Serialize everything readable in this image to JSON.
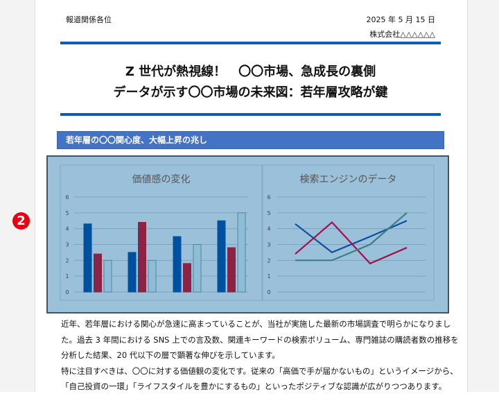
{
  "badge": "2",
  "header": {
    "recipient": "報道関係各位",
    "date": "2025 年 5 月 15 日",
    "company": "株式会社△△△△△△"
  },
  "title": {
    "line1": "Z 世代が熱視線！　〇〇市場、急成長の裏側",
    "line2": "データが示す〇〇市場の未来図：若年層攻略が鍵"
  },
  "section_heading": "若年層の〇〇関心度、大幅上昇の兆し",
  "colors": {
    "accent": "#0a5cb5",
    "section": "#4472c4",
    "chart_bg": "#9ac0da",
    "badge": "#e60012"
  },
  "chart_data": [
    {
      "type": "bar",
      "title": "価値感の変化",
      "categories": [
        "",
        "",
        "",
        ""
      ],
      "series": [
        {
          "values": [
            4.3,
            2.5,
            3.5,
            4.5
          ],
          "color": "#0050a0"
        },
        {
          "values": [
            2.4,
            4.4,
            1.8,
            2.8
          ],
          "color": "#8b2346"
        },
        {
          "values": [
            2.0,
            2.0,
            3.0,
            5.0
          ],
          "color": "#8fbcd8"
        }
      ],
      "yticks": [
        "0",
        "1",
        "2",
        "3",
        "4",
        "5",
        "6"
      ],
      "ylim": [
        0,
        6
      ],
      "grid": true
    },
    {
      "type": "line",
      "title": "検索エンジンのデータ",
      "categories": [
        "",
        "",
        "",
        ""
      ],
      "series": [
        {
          "values": [
            4.3,
            2.5,
            3.5,
            4.5
          ],
          "color": "#0a4ea0"
        },
        {
          "values": [
            2.4,
            4.4,
            1.8,
            2.8
          ],
          "color": "#a0104a"
        },
        {
          "values": [
            2.0,
            2.0,
            3.0,
            5.0
          ],
          "color": "#3a8080"
        }
      ],
      "yticks": [
        "0",
        "1",
        "2",
        "3",
        "4",
        "5",
        "6"
      ],
      "ylim": [
        0,
        6
      ],
      "grid": true
    }
  ],
  "body": {
    "lines": [
      "近年、若年層における関心が急速に高まっていることが、当社が実施した最新の市場調査で明らかになりまし",
      "た。過去 3 年間における SNS 上での言及数、関連キーワードの検索ボリューム、専門雑誌の購読者数の推移を",
      "分析した結果、20 代以下の層で顕著な伸びを示しています。",
      "特に注目すべきは、〇〇に対する価値観の変化です。従来の「高価で手が届かないもの」というイメージから、",
      "「自己投資の一環」「ライフスタイルを豊かにするもの」といったポジティブな認識が広がりつつあります。"
    ]
  }
}
